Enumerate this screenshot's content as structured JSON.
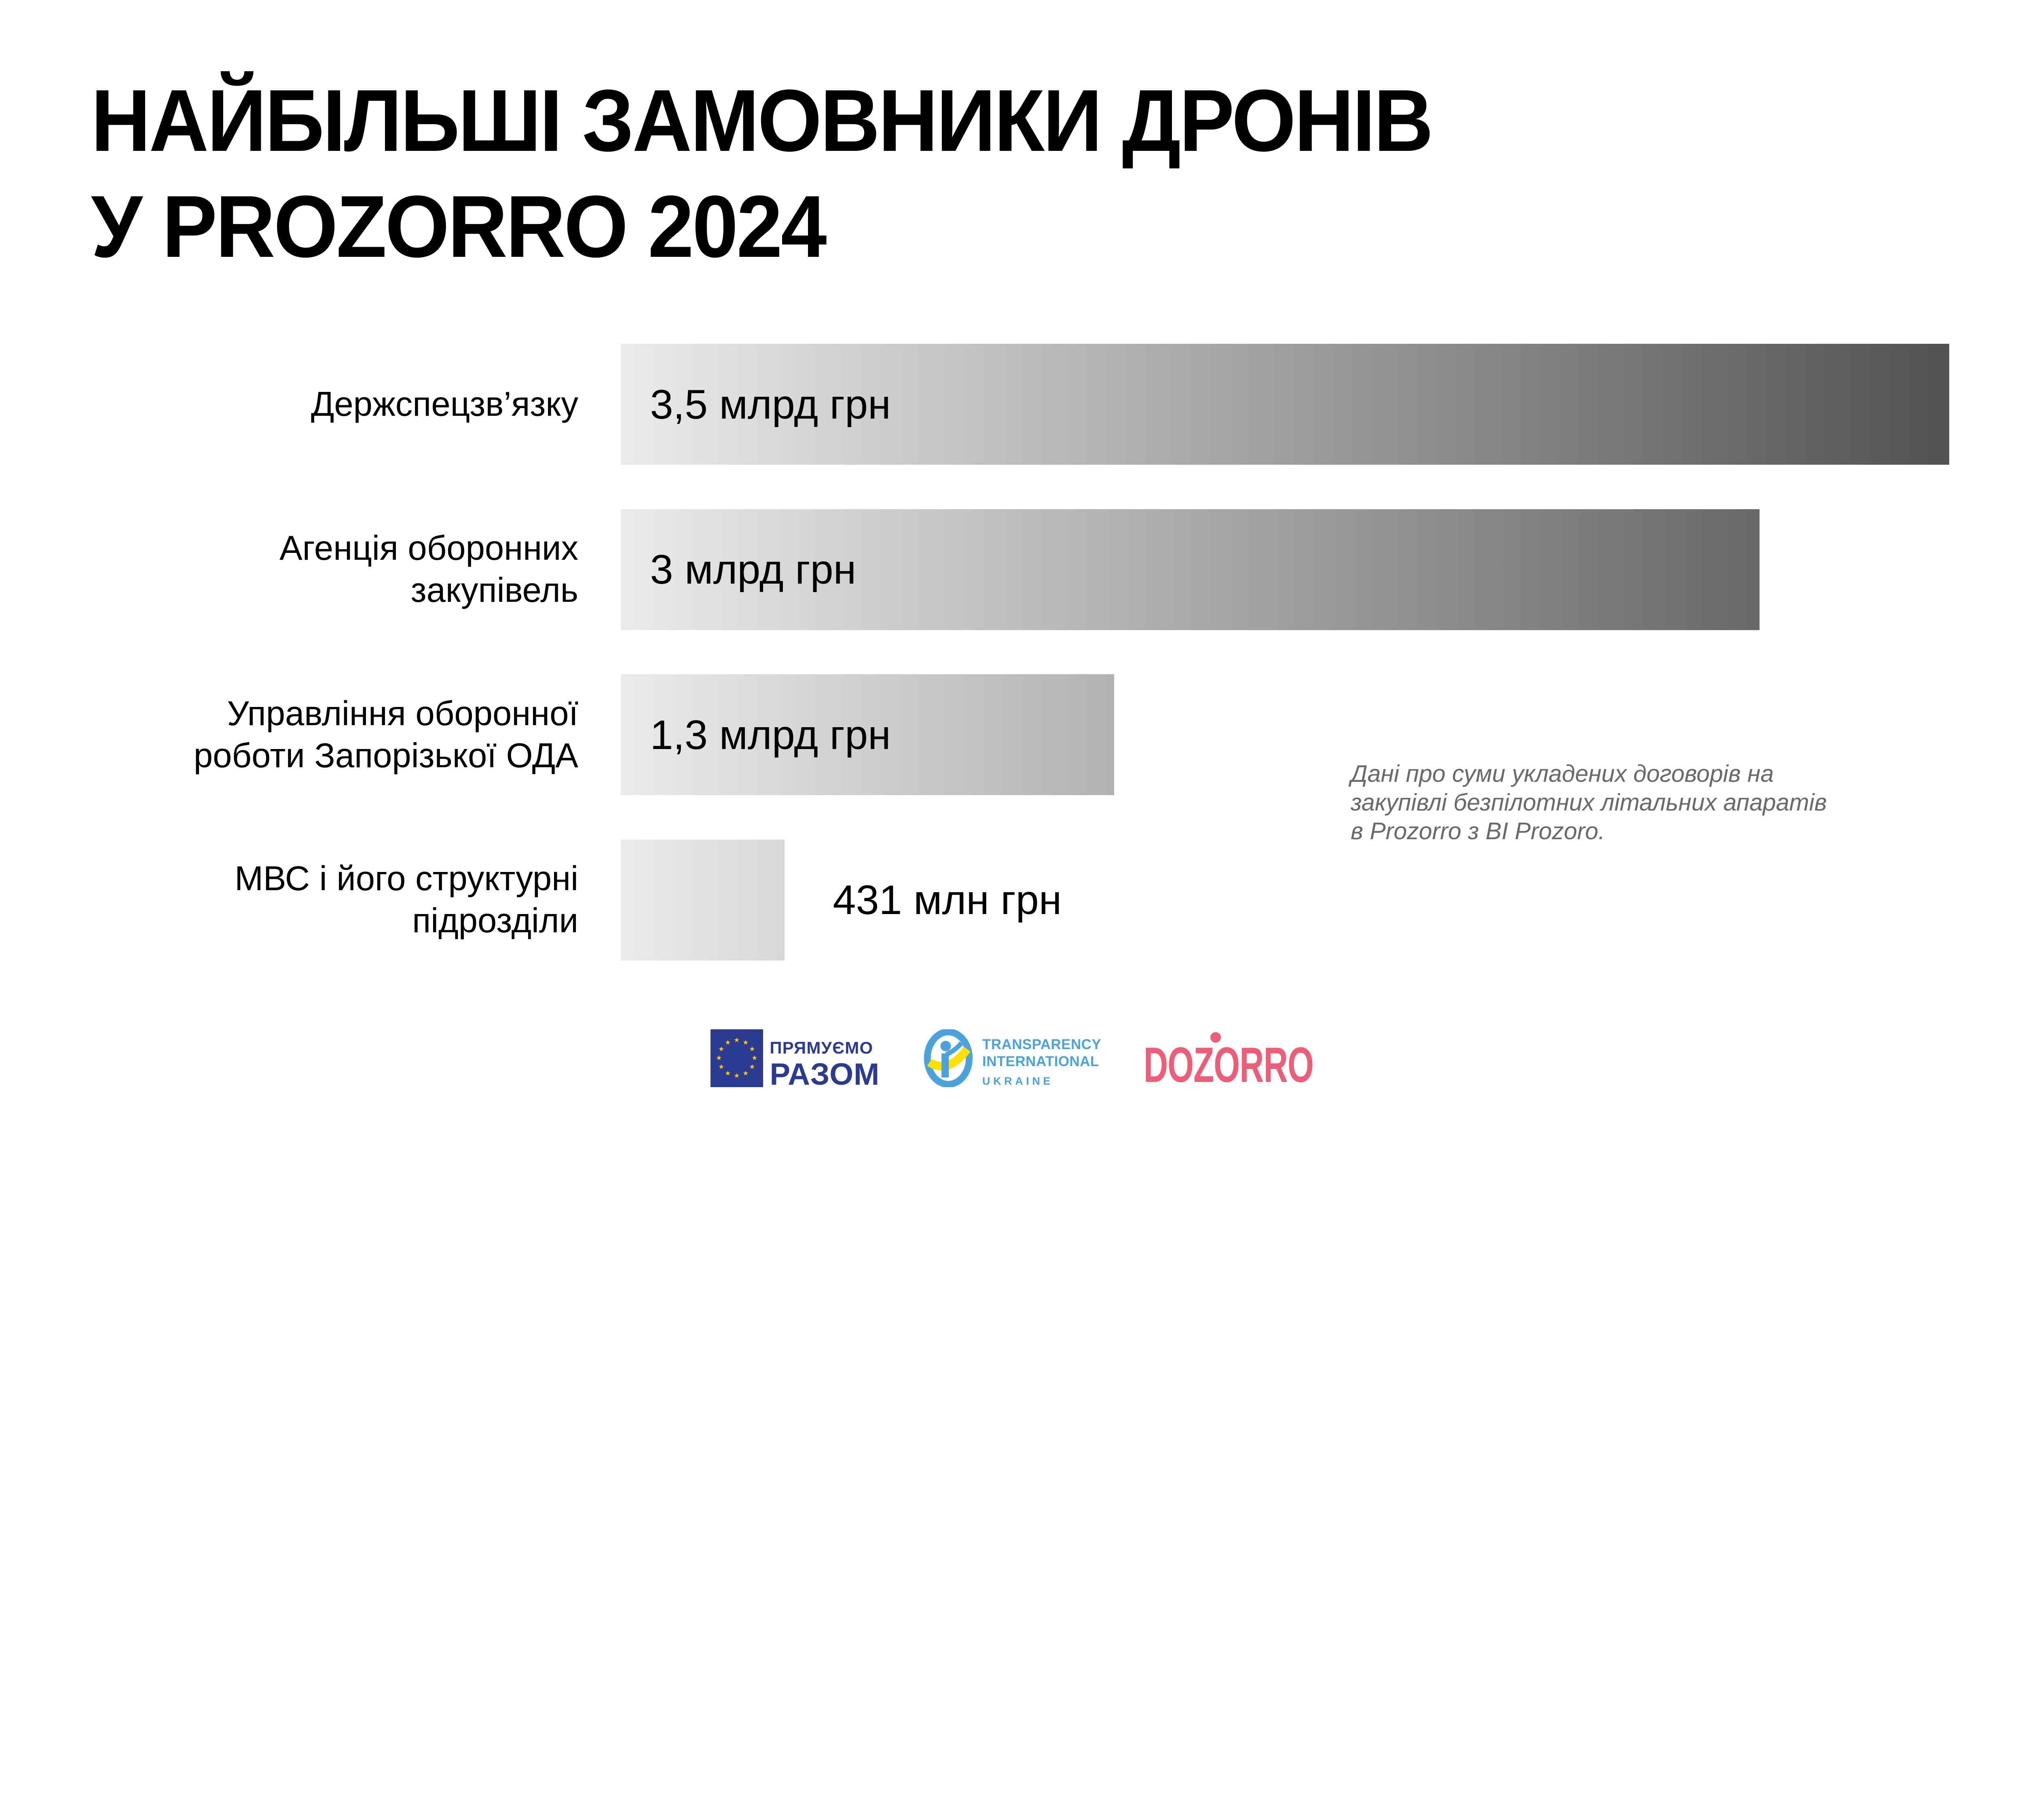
{
  "title": {
    "line1": "НАЙБІЛЬШІ ЗАМОВНИКИ ДРОНІВ",
    "line2": "У PROZORRO 2024"
  },
  "chart_data": {
    "type": "bar",
    "orientation": "horizontal",
    "title": "НАЙБІЛЬШІ ЗАМОВНИКИ ДРОНІВ У PROZORRO 2024",
    "unit": "грн",
    "categories": [
      "Держспецзв’язку",
      "Агенція оборонних\nзакупівель",
      "Управління оборонної\nроботи Запорізької ОДА",
      "МВС і його структурні\nпідрозділи"
    ],
    "values_uah_bn": [
      3.5,
      3.0,
      1.3,
      0.431
    ],
    "value_labels": [
      "3,5 млрд грн",
      "3 млрд грн",
      "1,3 млрд грн",
      "431 млн грн"
    ],
    "value_label_position": [
      "inside",
      "inside",
      "inside",
      "outside"
    ],
    "xlim": [
      0,
      3.5
    ],
    "grid": false,
    "legend": false,
    "bar_gradient_start": "#ebebeb",
    "bar_gradient_end": "#525252"
  },
  "note": {
    "text": "Дані про суми укладених договорів на\nзакупівлі безпілотних літальних апаратів\nв Prozorro з BI Prozoro."
  },
  "footer": {
    "eu_logo": {
      "line1": "ПРЯМУЄМО",
      "line2": "РАЗОМ",
      "flag_blue": "#2c3b92",
      "star_yellow": "#ffcc00"
    },
    "ti_logo": {
      "line1": "TRANSPARENCY",
      "line2": "INTERNATIONAL",
      "line3": "UKRAINE",
      "blue": "#4aa3dc",
      "yellow": "#ffe000"
    },
    "dozorro_logo": {
      "text": "DOZORRO",
      "pink": "#ee5d78"
    }
  }
}
